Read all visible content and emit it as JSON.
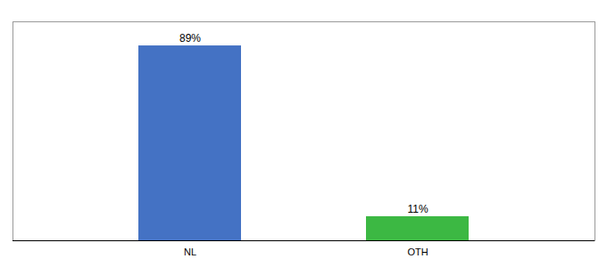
{
  "chart_data": {
    "type": "bar",
    "categories": [
      "NL",
      "OTH"
    ],
    "values": [
      89,
      11
    ],
    "colors": [
      "#4472c4",
      "#3cb843"
    ],
    "value_labels": [
      "89%",
      "11%"
    ],
    "data_labels": true,
    "ylim": [
      0,
      100
    ],
    "tick_labels": "x"
  }
}
